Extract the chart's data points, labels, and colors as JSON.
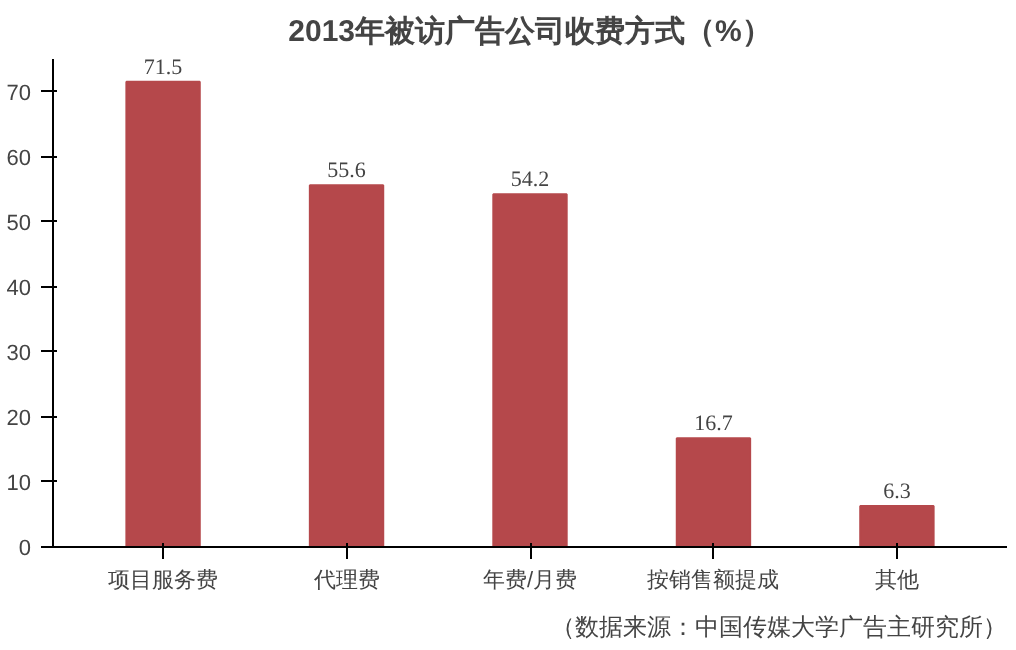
{
  "chart_data": {
    "type": "bar",
    "title": "2013年被访广告公司收费方式（%）",
    "categories": [
      "项目服务费",
      "代理费",
      "年费/月费",
      "按销售额提成",
      "其他"
    ],
    "values": [
      71.5,
      55.6,
      54.2,
      16.7,
      6.3
    ],
    "color": "#b5484b",
    "ylim": [
      0,
      75
    ],
    "yticks": [
      0,
      10,
      20,
      30,
      40,
      50,
      60,
      70
    ],
    "grid": false,
    "data_labels": true,
    "annotations": [
      "（数据来源：中国传媒大学广告主研究所）"
    ]
  }
}
